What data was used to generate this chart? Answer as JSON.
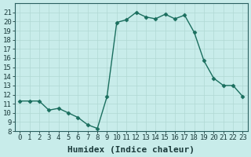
{
  "x": [
    0,
    1,
    2,
    3,
    4,
    5,
    6,
    7,
    8,
    9,
    10,
    11,
    12,
    13,
    14,
    15,
    16,
    17,
    18,
    19,
    20,
    21,
    22,
    23
  ],
  "y": [
    11.3,
    11.3,
    11.3,
    10.3,
    10.5,
    10.0,
    9.5,
    8.7,
    8.3,
    11.8,
    19.9,
    20.2,
    21.0,
    20.5,
    20.3,
    20.8,
    20.3,
    20.7,
    18.8,
    15.7,
    13.8,
    13.0,
    13.0,
    11.8
  ],
  "line_color": "#1a6e5e",
  "marker": "D",
  "marker_size": 2.5,
  "bg_color": "#c8ecea",
  "grid_color": "#b0d8d4",
  "xlabel": "Humidex (Indice chaleur)",
  "xlim": [
    -0.5,
    23.5
  ],
  "ylim": [
    8,
    22
  ],
  "yticks": [
    8,
    9,
    10,
    11,
    12,
    13,
    14,
    15,
    16,
    17,
    18,
    19,
    20,
    21
  ],
  "xticks": [
    0,
    1,
    2,
    3,
    4,
    5,
    6,
    7,
    8,
    9,
    10,
    11,
    12,
    13,
    14,
    15,
    16,
    17,
    18,
    19,
    20,
    21,
    22,
    23
  ],
  "xlabel_fontsize": 8,
  "tick_fontsize": 6.5,
  "line_width": 1.0
}
